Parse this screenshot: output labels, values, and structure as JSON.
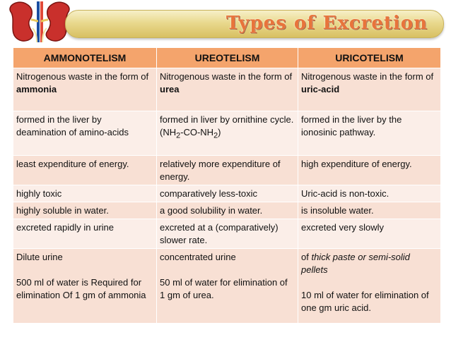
{
  "title": "Types of Excretion",
  "headers": [
    "AMMONOTELISM",
    "UREOTELISM",
    "URICOTELISM"
  ],
  "rows": {
    "form": {
      "ammono_prefix": "Nitrogenous waste in the form of ",
      "ammono_bold": "ammonia",
      "ureo_prefix": "Nitrogenous waste in the form of ",
      "ureo_bold": "urea",
      "urico_prefix": "Nitrogenous waste in the form of ",
      "urico_bold": "uric-acid"
    },
    "formed": {
      "ammono": "formed in the liver by deamination of amino-acids",
      "ureo_prefix": "formed in liver by ornithine cycle. (NH",
      "ureo_sub1": "2",
      "ureo_mid": "-CO-NH",
      "ureo_sub2": "2",
      "ureo_suffix": ")",
      "urico": "formed in the liver by the ionosinic pathway."
    },
    "energy": [
      "least expenditure of energy.",
      "relatively more expenditure of energy.",
      "high expenditure of energy."
    ],
    "toxicity": [
      "highly toxic",
      "comparatively less-toxic",
      "Uric-acid is non-toxic."
    ],
    "solubility": [
      "highly soluble in water.",
      "a good solubility in water.",
      "is insoluble water."
    ],
    "excretion_rate": [
      "excreted rapidly in urine",
      "excreted at a (comparatively) slower rate.",
      "excreted very slowly"
    ],
    "urine": {
      "ammono_line1": "Dilute urine",
      "ammono_line2": "500 ml of water is Required for elimination Of 1 gm of ammonia",
      "ureo_line1": "concentrated urine",
      "ureo_line2": "50 ml of water for elimination of 1 gm of urea.",
      "urico_prefix": "of ",
      "urico_italic": "thick paste or semi-solid pellets",
      "urico_line2": "10 ml of water for elimination of one gm uric acid."
    }
  }
}
